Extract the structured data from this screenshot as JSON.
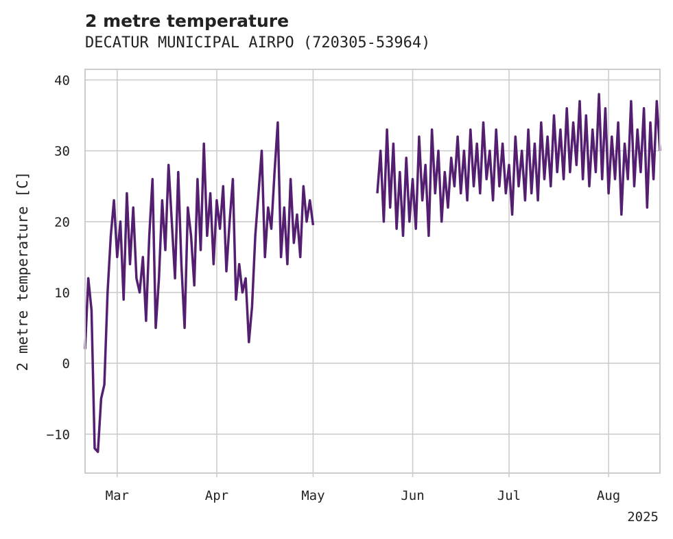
{
  "chart_data": {
    "type": "line",
    "title": "2 metre temperature",
    "subtitle": "DECATUR MUNICIPAL AIRPO (720305-53964)",
    "xlabel": "",
    "ylabel": "2 metre temperature [C]",
    "x_range": [
      "2025-02-19",
      "2025-08-17"
    ],
    "ylim": [
      -15.5,
      41.5
    ],
    "y_ticks": [
      -10,
      0,
      10,
      20,
      30,
      40
    ],
    "y_tick_labels": [
      "−10",
      "0",
      "10",
      "20",
      "30",
      "40"
    ],
    "x_ticks": [
      {
        "date": "2025-03-01",
        "label": "Mar"
      },
      {
        "date": "2025-04-01",
        "label": "Apr"
      },
      {
        "date": "2025-05-01",
        "label": "May"
      },
      {
        "date": "2025-06-01",
        "label": "Jun"
      },
      {
        "date": "2025-07-01",
        "label": "Jul"
      },
      {
        "date": "2025-08-01",
        "label": "Aug"
      }
    ],
    "x_offset_label": "2025",
    "grid": true,
    "series": [
      {
        "color": "#541f70",
        "points": [
          [
            "2025-02-19",
            2.0
          ],
          [
            "2025-02-20",
            12.0
          ],
          [
            "2025-02-21",
            7.5
          ],
          [
            "2025-02-22",
            -12.0
          ],
          [
            "2025-02-23",
            -12.5
          ],
          [
            "2025-02-24",
            -5.0
          ],
          [
            "2025-02-25",
            -3.0
          ],
          [
            "2025-02-26",
            10.0
          ],
          [
            "2025-02-27",
            18.0
          ],
          [
            "2025-02-28",
            23.0
          ],
          [
            "2025-03-01",
            15.0
          ],
          [
            "2025-03-02",
            20.0
          ],
          [
            "2025-03-03",
            9.0
          ],
          [
            "2025-03-04",
            24.0
          ],
          [
            "2025-03-05",
            14.0
          ],
          [
            "2025-03-06",
            22.0
          ],
          [
            "2025-03-07",
            12.0
          ],
          [
            "2025-03-08",
            10.0
          ],
          [
            "2025-03-09",
            15.0
          ],
          [
            "2025-03-10",
            6.0
          ],
          [
            "2025-03-11",
            18.0
          ],
          [
            "2025-03-12",
            26.0
          ],
          [
            "2025-03-13",
            5.0
          ],
          [
            "2025-03-14",
            12.0
          ],
          [
            "2025-03-15",
            23.0
          ],
          [
            "2025-03-16",
            16.0
          ],
          [
            "2025-03-17",
            28.0
          ],
          [
            "2025-03-18",
            20.0
          ],
          [
            "2025-03-19",
            12.0
          ],
          [
            "2025-03-20",
            27.0
          ],
          [
            "2025-03-21",
            14.0
          ],
          [
            "2025-03-22",
            5.0
          ],
          [
            "2025-03-23",
            22.0
          ],
          [
            "2025-03-24",
            18.0
          ],
          [
            "2025-03-25",
            11.0
          ],
          [
            "2025-03-26",
            26.0
          ],
          [
            "2025-03-27",
            16.0
          ],
          [
            "2025-03-28",
            31.0
          ],
          [
            "2025-03-29",
            18.0
          ],
          [
            "2025-03-30",
            24.0
          ],
          [
            "2025-03-31",
            14.0
          ],
          [
            "2025-04-01",
            23.0
          ],
          [
            "2025-04-02",
            19.0
          ],
          [
            "2025-04-03",
            25.0
          ],
          [
            "2025-04-04",
            13.0
          ],
          [
            "2025-04-05",
            20.0
          ],
          [
            "2025-04-06",
            26.0
          ],
          [
            "2025-04-07",
            9.0
          ],
          [
            "2025-04-08",
            14.0
          ],
          [
            "2025-04-09",
            10.0
          ],
          [
            "2025-04-10",
            12.0
          ],
          [
            "2025-04-11",
            3.0
          ],
          [
            "2025-04-12",
            8.0
          ],
          [
            "2025-04-13",
            18.0
          ],
          [
            "2025-04-14",
            24.0
          ],
          [
            "2025-04-15",
            30.0
          ],
          [
            "2025-04-16",
            15.0
          ],
          [
            "2025-04-17",
            22.0
          ],
          [
            "2025-04-18",
            19.0
          ],
          [
            "2025-04-19",
            27.0
          ],
          [
            "2025-04-20",
            34.0
          ],
          [
            "2025-04-21",
            15.0
          ],
          [
            "2025-04-22",
            22.0
          ],
          [
            "2025-04-23",
            14.0
          ],
          [
            "2025-04-24",
            26.0
          ],
          [
            "2025-04-25",
            17.0
          ],
          [
            "2025-04-26",
            21.0
          ],
          [
            "2025-04-27",
            15.0
          ],
          [
            "2025-04-28",
            25.0
          ],
          [
            "2025-04-29",
            20.0
          ],
          [
            "2025-04-30",
            23.0
          ],
          [
            "2025-05-01",
            19.5
          ],
          [
            "2025-05-21",
            24.0
          ],
          [
            "2025-05-22",
            30.0
          ],
          [
            "2025-05-23",
            20.0
          ],
          [
            "2025-05-24",
            33.0
          ],
          [
            "2025-05-25",
            22.0
          ],
          [
            "2025-05-26",
            31.0
          ],
          [
            "2025-05-27",
            19.0
          ],
          [
            "2025-05-28",
            27.0
          ],
          [
            "2025-05-29",
            18.0
          ],
          [
            "2025-05-30",
            29.0
          ],
          [
            "2025-05-31",
            20.0
          ],
          [
            "2025-06-01",
            26.0
          ],
          [
            "2025-06-02",
            19.0
          ],
          [
            "2025-06-03",
            32.0
          ],
          [
            "2025-06-04",
            23.0
          ],
          [
            "2025-06-05",
            28.0
          ],
          [
            "2025-06-06",
            18.0
          ],
          [
            "2025-06-07",
            33.0
          ],
          [
            "2025-06-08",
            24.0
          ],
          [
            "2025-06-09",
            30.0
          ],
          [
            "2025-06-10",
            20.0
          ],
          [
            "2025-06-11",
            27.0
          ],
          [
            "2025-06-12",
            22.0
          ],
          [
            "2025-06-13",
            29.0
          ],
          [
            "2025-06-14",
            25.0
          ],
          [
            "2025-06-15",
            32.0
          ],
          [
            "2025-06-16",
            24.0
          ],
          [
            "2025-06-17",
            30.0
          ],
          [
            "2025-06-18",
            23.0
          ],
          [
            "2025-06-19",
            33.0
          ],
          [
            "2025-06-20",
            25.0
          ],
          [
            "2025-06-21",
            31.0
          ],
          [
            "2025-06-22",
            24.0
          ],
          [
            "2025-06-23",
            34.0
          ],
          [
            "2025-06-24",
            26.0
          ],
          [
            "2025-06-25",
            30.0
          ],
          [
            "2025-06-26",
            23.0
          ],
          [
            "2025-06-27",
            33.0
          ],
          [
            "2025-06-28",
            25.0
          ],
          [
            "2025-06-29",
            31.0
          ],
          [
            "2025-06-30",
            24.0
          ],
          [
            "2025-07-01",
            28.0
          ],
          [
            "2025-07-02",
            21.0
          ],
          [
            "2025-07-03",
            32.0
          ],
          [
            "2025-07-04",
            25.0
          ],
          [
            "2025-07-05",
            30.0
          ],
          [
            "2025-07-06",
            23.0
          ],
          [
            "2025-07-07",
            33.0
          ],
          [
            "2025-07-08",
            24.0
          ],
          [
            "2025-07-09",
            31.0
          ],
          [
            "2025-07-10",
            23.0
          ],
          [
            "2025-07-11",
            34.0
          ],
          [
            "2025-07-12",
            26.0
          ],
          [
            "2025-07-13",
            32.0
          ],
          [
            "2025-07-14",
            25.0
          ],
          [
            "2025-07-15",
            35.0
          ],
          [
            "2025-07-16",
            27.0
          ],
          [
            "2025-07-17",
            33.0
          ],
          [
            "2025-07-18",
            26.0
          ],
          [
            "2025-07-19",
            36.0
          ],
          [
            "2025-07-20",
            27.0
          ],
          [
            "2025-07-21",
            34.0
          ],
          [
            "2025-07-22",
            28.0
          ],
          [
            "2025-07-23",
            37.0
          ],
          [
            "2025-07-24",
            26.0
          ],
          [
            "2025-07-25",
            35.0
          ],
          [
            "2025-07-26",
            25.0
          ],
          [
            "2025-07-27",
            33.0
          ],
          [
            "2025-07-28",
            27.0
          ],
          [
            "2025-07-29",
            38.0
          ],
          [
            "2025-07-30",
            26.0
          ],
          [
            "2025-07-31",
            36.0
          ],
          [
            "2025-08-01",
            24.0
          ],
          [
            "2025-08-02",
            32.0
          ],
          [
            "2025-08-03",
            26.0
          ],
          [
            "2025-08-04",
            34.0
          ],
          [
            "2025-08-05",
            21.0
          ],
          [
            "2025-08-06",
            31.0
          ],
          [
            "2025-08-07",
            26.0
          ],
          [
            "2025-08-08",
            37.0
          ],
          [
            "2025-08-09",
            25.0
          ],
          [
            "2025-08-10",
            33.0
          ],
          [
            "2025-08-11",
            27.0
          ],
          [
            "2025-08-12",
            36.0
          ],
          [
            "2025-08-13",
            22.0
          ],
          [
            "2025-08-14",
            34.0
          ],
          [
            "2025-08-15",
            26.0
          ],
          [
            "2025-08-16",
            37.0
          ],
          [
            "2025-08-17",
            30.0
          ]
        ]
      }
    ]
  }
}
